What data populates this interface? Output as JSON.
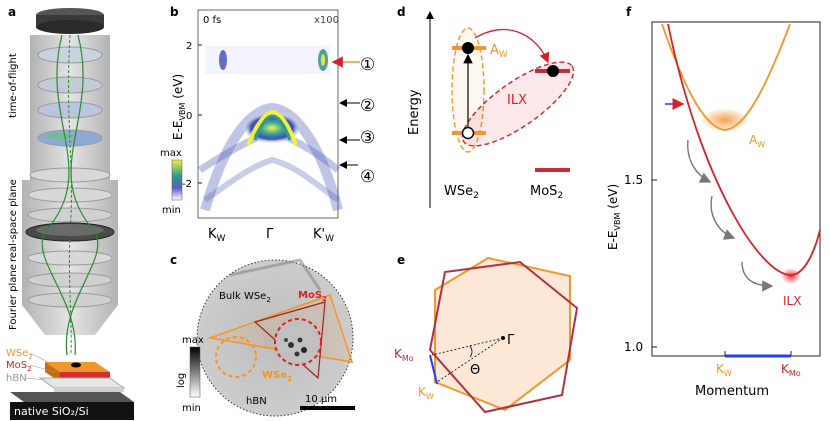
{
  "panels": {
    "a": {
      "label": "a",
      "stage_labels": [
        "time-of-flight",
        "real-space plane",
        "Fourier plane"
      ],
      "sample_labels": {
        "wse2": "WSe",
        "wse2_sub": "2",
        "mos2": "MoS",
        "mos2_sub": "2",
        "hbn": "hBN"
      },
      "substrate": "native SiO₂/Si"
    },
    "b": {
      "label": "b",
      "time": "0 fs",
      "magnification": "x100",
      "ylabel": "E-E",
      "ylabel_sub": "VBM",
      "ylabel_unit": " (eV)",
      "yticks": [
        "2",
        "0",
        "-2"
      ],
      "xticks": [
        "K",
        "Γ",
        "K'"
      ],
      "xtick_subs": [
        "W",
        "",
        "W"
      ],
      "colorbar": {
        "max": "max",
        "min": "min"
      },
      "markers": [
        "①",
        "②",
        "③",
        "④"
      ]
    },
    "c": {
      "label": "c",
      "colorbar": {
        "max": "max",
        "min": "min",
        "scale": "log"
      },
      "labels": {
        "bulk": "Bulk WSe",
        "bulk_sub": "2",
        "mos2": "MoS",
        "mos2_sub": "2",
        "wse2": "WSe",
        "wse2_sub": "2",
        "hbn": "hBN"
      },
      "scalebar": "10 μm"
    },
    "d": {
      "label": "d",
      "yaxis": "Energy",
      "aw": "A",
      "aw_sub": "W",
      "ilx": "ILX",
      "wse2": "WSe",
      "wse2_sub": "2",
      "mos2": "MoS",
      "mos2_sub": "2"
    },
    "e": {
      "label": "e",
      "gamma": "Γ",
      "theta": "Θ",
      "kmo": "K",
      "kmo_sub": "Mo",
      "kw": "K",
      "kw_sub": "W"
    },
    "f": {
      "label": "f",
      "ylabel": "E-E",
      "ylabel_sub": "VBM",
      "ylabel_unit": " (eV)",
      "yticks": [
        "1.5",
        "1.0"
      ],
      "xlabel": "Momentum",
      "xticks": [
        "K",
        "K"
      ],
      "xtick_subs": [
        "W",
        "Mo"
      ],
      "aw": "A",
      "aw_sub": "W",
      "ilx": "ILX"
    }
  },
  "colors": {
    "orange": "#f0962a",
    "red": "#d8202a",
    "darkred": "#b03040",
    "blue": "#1f3cff",
    "green": "#2a8a2a",
    "hexfill": "#fde8d8"
  }
}
